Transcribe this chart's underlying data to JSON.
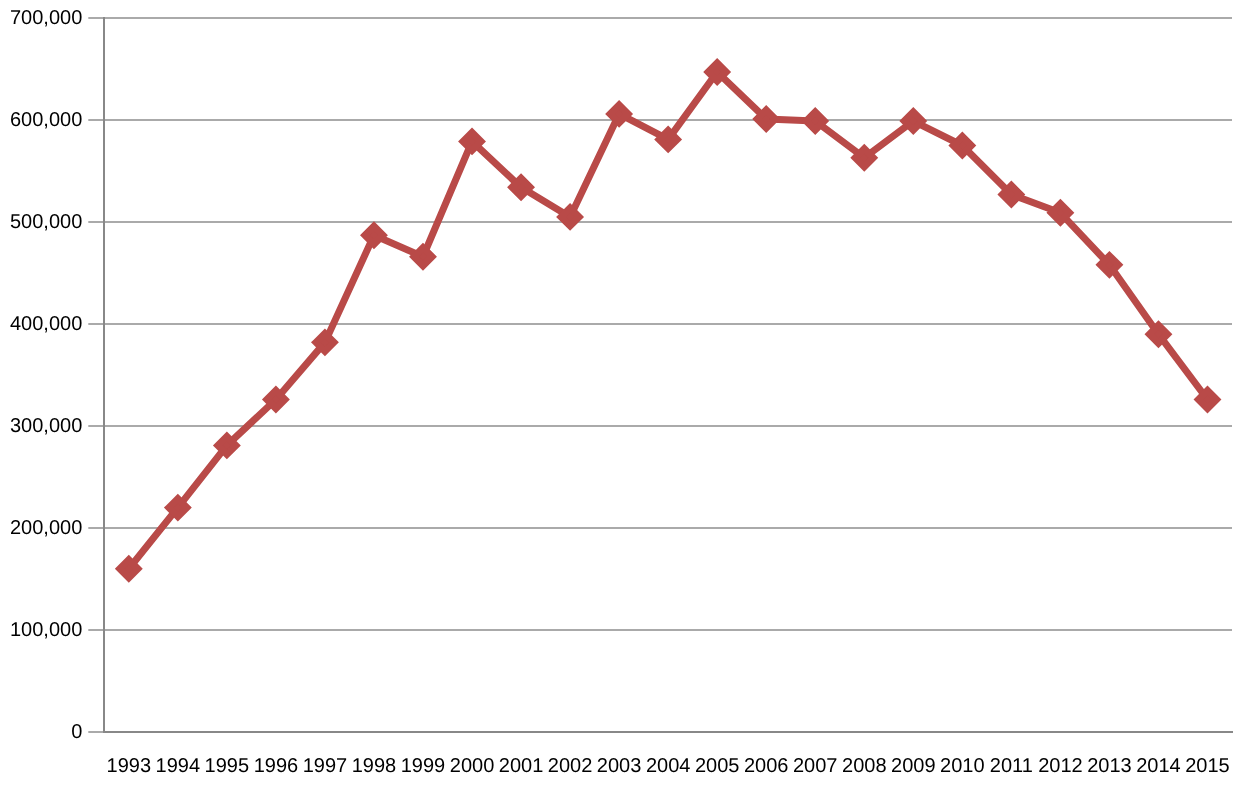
{
  "chart_data": {
    "type": "line",
    "categories": [
      "1993",
      "1994",
      "1995",
      "1996",
      "1997",
      "1998",
      "1999",
      "2000",
      "2001",
      "2002",
      "2003",
      "2004",
      "2005",
      "2006",
      "2007",
      "2008",
      "2009",
      "2010",
      "2011",
      "2012",
      "2013",
      "2014",
      "2015"
    ],
    "series": [
      {
        "color": "#b94a48",
        "values": [
          160000,
          220000,
          281000,
          326000,
          382000,
          487000,
          466000,
          579000,
          534000,
          505000,
          606000,
          581000,
          647000,
          601000,
          599000,
          563000,
          599000,
          575000,
          527000,
          509000,
          458000,
          390000,
          326000
        ]
      }
    ],
    "ylim": [
      0,
      700000
    ],
    "yticks": [
      {
        "value": 0,
        "label": "0"
      },
      {
        "value": 100000,
        "label": "100,000"
      },
      {
        "value": 200000,
        "label": "200,000"
      },
      {
        "value": 300000,
        "label": "300,000"
      },
      {
        "value": 400000,
        "label": "400,000"
      },
      {
        "value": 500000,
        "label": "500,000"
      },
      {
        "value": 600000,
        "label": "600,000"
      },
      {
        "value": 700000,
        "label": "700,000"
      }
    ],
    "grid": "y",
    "legend": false,
    "marker": "diamond",
    "line_style": "solid"
  }
}
